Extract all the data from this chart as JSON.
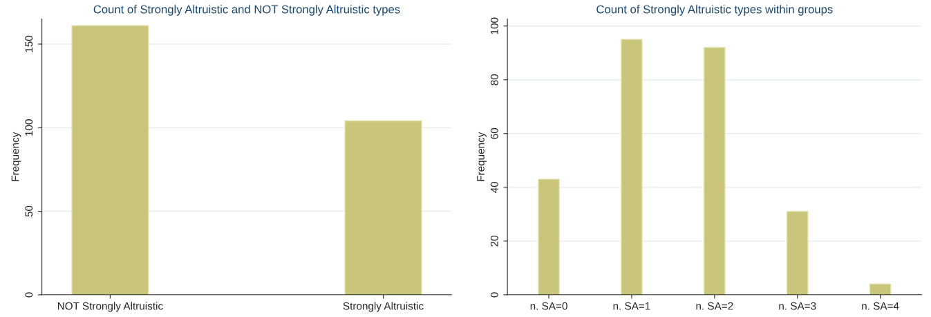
{
  "chart_data": [
    {
      "type": "bar",
      "title": "Count of Strongly Altruistic and NOT Strongly Altruistic types",
      "ylabel": "Frequency",
      "categories": [
        "NOT Strongly Altruistic",
        "Strongly Altruistic"
      ],
      "values": [
        161,
        104
      ],
      "color": "#c9c67b",
      "ylim": [
        0,
        165
      ],
      "yticks": [
        0,
        50,
        100,
        150
      ],
      "grid": "y"
    },
    {
      "type": "bar",
      "title": "Count of Strongly Altruistic types within groups",
      "ylabel": "Frequency",
      "categories": [
        "n. SA=0",
        "n. SA=1",
        "n. SA=2",
        "n. SA=3",
        "n. SA=4"
      ],
      "values": [
        43,
        95,
        92,
        31,
        4
      ],
      "color": "#c9c67b",
      "ylim": [
        0,
        102.6
      ],
      "yticks": [
        0,
        20,
        40,
        60,
        80,
        100
      ],
      "grid": "y"
    }
  ]
}
